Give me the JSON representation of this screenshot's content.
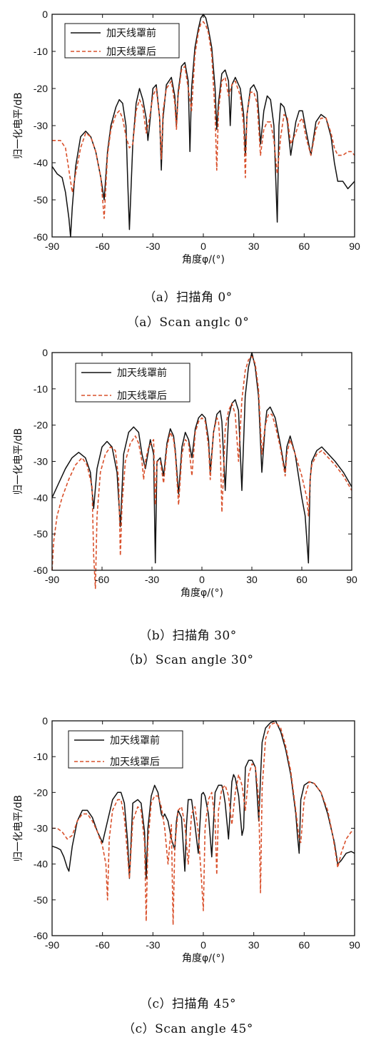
{
  "chart_data": [
    {
      "type": "line",
      "ylabel": "归一化电平/dB",
      "xlabel": "角度φ/(°)",
      "xlim": [
        -90,
        90
      ],
      "ylim": [
        -60,
        0
      ],
      "xticks": [
        "-90",
        "-60",
        "-30",
        "0",
        "30",
        "60",
        "90"
      ],
      "yticks": [
        "0",
        "-10",
        "-20",
        "-30",
        "-40",
        "-50",
        "-60"
      ],
      "legend_position": "top-left",
      "caption_cn": "（a）扫描角 0°",
      "caption_en": "（a）Scan anglc 0°",
      "series": [
        {
          "name": "加天线罩前",
          "color": "#111111",
          "style": "solid",
          "x": [
            -90,
            -87,
            -84,
            -82,
            -80,
            -79,
            -78,
            -76,
            -73,
            -70,
            -67,
            -64,
            -61,
            -59,
            -57,
            -55,
            -52,
            -50,
            -48,
            -46,
            -45,
            -44,
            -42,
            -40,
            -38,
            -36,
            -34,
            -33,
            -32,
            -30,
            -28,
            -26,
            -25,
            -24,
            -22,
            -19,
            -17,
            -16,
            -15,
            -13,
            -11,
            -9,
            -8,
            -7,
            -5,
            -3,
            -1.5,
            0,
            1.5,
            3,
            5,
            7,
            8,
            9,
            11,
            13,
            15,
            16,
            17,
            19,
            22,
            24,
            25,
            26,
            28,
            30,
            32,
            33,
            34,
            36,
            38,
            40,
            42,
            44,
            45,
            46,
            48,
            50,
            52,
            55,
            57,
            59,
            61,
            64,
            67,
            70,
            73,
            76,
            78,
            80,
            83,
            86,
            88,
            90
          ],
          "y": [
            -41,
            -43,
            -44,
            -48,
            -55,
            -60,
            -52,
            -41,
            -33,
            -31.5,
            -33,
            -37,
            -44,
            -50,
            -37,
            -30,
            -25,
            -23,
            -24,
            -30,
            -45,
            -58,
            -35,
            -24,
            -20,
            -23,
            -28,
            -34,
            -30,
            -20,
            -19,
            -28,
            -42,
            -28,
            -19,
            -17,
            -22,
            -30,
            -21,
            -14,
            -13,
            -18,
            -37,
            -20,
            -9,
            -4,
            -1,
            0,
            -1,
            -4,
            -9,
            -20,
            -31,
            -24,
            -16,
            -15,
            -18,
            -30,
            -19,
            -17,
            -20,
            -27,
            -38,
            -27,
            -20,
            -19,
            -21,
            -27,
            -35,
            -26,
            -22,
            -23,
            -30,
            -56,
            -30,
            -24,
            -25,
            -29,
            -38,
            -29,
            -26,
            -26,
            -31,
            -38,
            -29,
            -27,
            -28,
            -33,
            -40,
            -45,
            -45,
            -47,
            -46,
            -45
          ]
        },
        {
          "name": "加天线罩后",
          "color": "#d9502b",
          "style": "dashed",
          "x": [
            -90,
            -85,
            -82,
            -80,
            -78,
            -76,
            -73,
            -70,
            -67,
            -64,
            -61,
            -59,
            -57,
            -55,
            -52,
            -50,
            -48,
            -46,
            -44,
            -42,
            -40,
            -38,
            -36,
            -34,
            -32,
            -30,
            -28,
            -26,
            -25,
            -24,
            -22,
            -19,
            -17,
            -16,
            -15,
            -13,
            -11,
            -9,
            -7,
            -5,
            -3,
            -1.5,
            0,
            1.5,
            3,
            5,
            7,
            8,
            9,
            11,
            13,
            15,
            17,
            19,
            22,
            24,
            25,
            26,
            28,
            30,
            32,
            34,
            36,
            38,
            40,
            42,
            44,
            46,
            48,
            50,
            52,
            55,
            57,
            59,
            61,
            64,
            67,
            70,
            73,
            76,
            78,
            80,
            83,
            86,
            88,
            90
          ],
          "y": [
            -34,
            -34,
            -36,
            -42,
            -48,
            -43,
            -36,
            -32,
            -33,
            -37,
            -44,
            -55,
            -38,
            -31,
            -27,
            -26,
            -28,
            -33,
            -36,
            -35,
            -26,
            -23,
            -25,
            -32,
            -28,
            -22,
            -20,
            -28,
            -39,
            -26,
            -20,
            -18,
            -24,
            -31,
            -22,
            -15,
            -14,
            -20,
            -26,
            -11,
            -5,
            -2.5,
            -2,
            -3,
            -5,
            -11,
            -27,
            -42,
            -26,
            -18,
            -17,
            -22,
            -19,
            -18,
            -22,
            -30,
            -44,
            -27,
            -21,
            -21,
            -24,
            -38,
            -31,
            -29,
            -29,
            -34,
            -43,
            -33,
            -27,
            -28,
            -35,
            -32,
            -29,
            -28,
            -33,
            -38,
            -31,
            -28,
            -28,
            -32,
            -36,
            -38,
            -38,
            -37,
            -37,
            -38
          ]
        }
      ]
    },
    {
      "type": "line",
      "ylabel": "归一化电平/dB",
      "xlabel": "角度φ/(°)",
      "xlim": [
        -90,
        90
      ],
      "ylim": [
        -60,
        0
      ],
      "xticks": [
        "-90",
        "-60",
        "-30",
        "0",
        "30",
        "60",
        "90"
      ],
      "yticks": [
        "0",
        "-10",
        "-20",
        "-30",
        "-40",
        "-50",
        "-60"
      ],
      "legend_position": "top-left",
      "caption_cn": "（b）扫描角 30°",
      "caption_en": "（b）Scan angle 30°",
      "series": [
        {
          "name": "加天线罩前",
          "color": "#111111",
          "style": "solid",
          "x": [
            -90,
            -86,
            -82,
            -78,
            -74,
            -70,
            -67,
            -65,
            -63,
            -60,
            -57,
            -54,
            -51,
            -49,
            -47,
            -44,
            -41,
            -38,
            -36,
            -34,
            -31,
            -29,
            -28,
            -27,
            -25,
            -23,
            -21,
            -19,
            -17,
            -16,
            -14,
            -12,
            -10,
            -8,
            -6,
            -4,
            -2,
            0,
            2,
            4,
            5,
            7,
            9,
            11,
            12,
            14,
            16,
            18,
            20,
            22,
            24,
            26,
            28,
            30,
            32,
            34,
            36,
            38,
            39,
            41,
            44,
            47,
            50,
            51,
            53,
            56,
            60,
            62,
            64,
            65,
            66,
            69,
            72,
            76,
            80,
            85,
            90
          ],
          "y": [
            -40,
            -36,
            -32,
            -29,
            -27.5,
            -29,
            -33,
            -43,
            -32,
            -26,
            -24.5,
            -26,
            -33,
            -48,
            -28,
            -22,
            -20.5,
            -22,
            -28,
            -32,
            -24,
            -28,
            -58,
            -30,
            -29,
            -34,
            -25,
            -21,
            -23,
            -27,
            -39,
            -26,
            -22,
            -24,
            -29,
            -21,
            -18,
            -17,
            -18,
            -24,
            -33,
            -22,
            -17,
            -16,
            -19,
            -38,
            -18,
            -14,
            -13,
            -16,
            -38,
            -12,
            -4,
            0,
            -4,
            -12,
            -33,
            -20,
            -16,
            -15,
            -18,
            -25,
            -33,
            -26,
            -23,
            -28,
            -40,
            -45,
            -58,
            -35,
            -30,
            -27,
            -26,
            -28,
            -30,
            -33,
            -37
          ]
        },
        {
          "name": "加天线罩后",
          "color": "#d9502b",
          "style": "dashed",
          "x": [
            -90,
            -89,
            -87,
            -84,
            -80,
            -76,
            -72,
            -69,
            -66,
            -65,
            -64,
            -63,
            -61,
            -58,
            -55,
            -52,
            -50,
            -49,
            -48,
            -46,
            -43,
            -40,
            -38,
            -36,
            -35,
            -34,
            -32,
            -29,
            -28,
            -27,
            -25,
            -23,
            -21,
            -19,
            -17,
            -16,
            -14,
            -12,
            -10,
            -8,
            -6,
            -4,
            -2,
            0,
            2,
            4,
            5,
            7,
            9,
            10,
            11,
            12,
            14,
            16,
            18,
            20,
            22,
            24,
            26,
            28,
            30,
            32,
            34,
            36,
            38,
            40,
            42,
            44,
            47,
            50,
            51,
            53,
            56,
            60,
            63,
            64,
            65,
            66,
            69,
            72,
            76,
            80,
            85,
            90
          ],
          "y": [
            -60,
            -52,
            -45,
            -40,
            -35,
            -31,
            -29,
            -31,
            -37,
            -56,
            -65,
            -45,
            -33,
            -28,
            -26,
            -27,
            -35,
            -56,
            -42,
            -30,
            -25,
            -23,
            -25,
            -30,
            -35,
            -30,
            -26,
            -24,
            -42,
            -30,
            -30,
            -36,
            -26,
            -22,
            -24,
            -28,
            -42,
            -28,
            -24,
            -25,
            -34,
            -22,
            -19,
            -18,
            -19,
            -26,
            -35,
            -22,
            -18,
            -19,
            -26,
            -44,
            -21,
            -16,
            -14,
            -17,
            -30,
            -13,
            -5,
            -2,
            -1,
            -3,
            -10,
            -28,
            -20,
            -17,
            -17,
            -20,
            -26,
            -34,
            -28,
            -24,
            -28,
            -34,
            -40,
            -45,
            -35,
            -31,
            -28,
            -27,
            -29,
            -31,
            -34,
            -38
          ]
        }
      ]
    },
    {
      "type": "line",
      "ylabel": "归一化电平/dB",
      "xlabel": "角度φ/(°)",
      "xlim": [
        -90,
        90
      ],
      "ylim": [
        -60,
        0
      ],
      "xticks": [
        "-90",
        "-60",
        "-30",
        "0",
        "30",
        "60",
        "90"
      ],
      "yticks": [
        "0",
        "-10",
        "-20",
        "-30",
        "-40",
        "-50",
        "-60"
      ],
      "legend_position": "top-left",
      "caption_cn": "（c）扫描角 45°",
      "caption_en": "（c）Scan angle 45°",
      "series": [
        {
          "name": "加天线罩前",
          "color": "#111111",
          "style": "solid",
          "x": [
            -90,
            -87,
            -85,
            -83,
            -81,
            -80,
            -78,
            -75,
            -72,
            -69,
            -66,
            -63,
            -60,
            -57,
            -54,
            -51,
            -49,
            -47,
            -45,
            -44,
            -42,
            -39,
            -37,
            -35,
            -34,
            -33,
            -31,
            -29,
            -27,
            -25,
            -24,
            -23,
            -21,
            -19,
            -17,
            -16,
            -15,
            -13,
            -11,
            -10,
            -9,
            -7,
            -5,
            -3,
            -1,
            0,
            1,
            3,
            5,
            6,
            7,
            9,
            11,
            12,
            13,
            15,
            17,
            18,
            19,
            21,
            23,
            24,
            25,
            27,
            29,
            31,
            33,
            34,
            35,
            37,
            40,
            43,
            46,
            49,
            52,
            55,
            56,
            57,
            58,
            60,
            63,
            66,
            70,
            74,
            78,
            80,
            82,
            85,
            88,
            90
          ],
          "y": [
            -35,
            -35.5,
            -36,
            -38,
            -41,
            -42,
            -35,
            -28,
            -25,
            -25,
            -27,
            -31,
            -34,
            -28,
            -22,
            -20,
            -20,
            -23,
            -34,
            -44,
            -23,
            -22,
            -23,
            -31,
            -44,
            -30,
            -21,
            -18,
            -20,
            -26,
            -27,
            -26,
            -28,
            -33,
            -36,
            -28,
            -25,
            -27,
            -42,
            -29,
            -22,
            -22,
            -29,
            -37,
            -20.5,
            -20,
            -21,
            -26,
            -38,
            -29,
            -20,
            -18,
            -18,
            -20,
            -23,
            -33,
            -17,
            -15,
            -16,
            -21,
            -32,
            -30,
            -13,
            -11,
            -11,
            -13,
            -28,
            -16,
            -6,
            -2,
            -0.5,
            0,
            -3,
            -8,
            -15,
            -26,
            -32,
            -37,
            -22,
            -18,
            -17,
            -17.5,
            -20,
            -26,
            -34,
            -40,
            -39,
            -37,
            -36.5,
            -37
          ]
        },
        {
          "name": "加天线罩后",
          "color": "#d9502b",
          "style": "dashed",
          "x": [
            -90,
            -87,
            -84,
            -81,
            -78,
            -75,
            -72,
            -69,
            -66,
            -63,
            -60,
            -58,
            -57,
            -56,
            -54,
            -51,
            -49,
            -47,
            -45,
            -44,
            -42,
            -39,
            -37,
            -35,
            -34,
            -33,
            -31,
            -29,
            -27,
            -25,
            -23,
            -21,
            -19,
            -18,
            -17,
            -15,
            -13,
            -11,
            -9,
            -7,
            -5,
            -3,
            -1,
            0,
            1,
            3,
            5,
            7,
            8,
            9,
            11,
            13,
            15,
            17,
            19,
            21,
            23,
            25,
            27,
            29,
            31,
            33,
            34,
            35,
            37,
            40,
            43,
            46,
            49,
            52,
            55,
            57,
            58,
            60,
            63,
            66,
            70,
            74,
            77,
            79,
            80,
            82,
            85,
            88,
            90
          ],
          "y": [
            -30,
            -30,
            -31,
            -33,
            -32,
            -28,
            -26,
            -26,
            -28,
            -31,
            -35,
            -40,
            -50,
            -33,
            -25,
            -22,
            -22,
            -27,
            -38,
            -44,
            -28,
            -24,
            -25,
            -34,
            -56,
            -34,
            -23,
            -21,
            -21,
            -24,
            -30,
            -40,
            -29,
            -57,
            -35,
            -25,
            -24,
            -29,
            -40,
            -26,
            -24,
            -31,
            -45,
            -53,
            -30,
            -22,
            -20,
            -28,
            -43,
            -25,
            -19,
            -18,
            -21,
            -29,
            -20,
            -15,
            -18,
            -25,
            -15,
            -12,
            -13,
            -22,
            -48,
            -19,
            -5,
            -1,
            -0.5,
            -2,
            -7,
            -14,
            -25,
            -33,
            -34,
            -22,
            -17,
            -17.5,
            -20,
            -25,
            -32,
            -38,
            -41,
            -37,
            -33,
            -31,
            -31
          ]
        }
      ]
    }
  ]
}
